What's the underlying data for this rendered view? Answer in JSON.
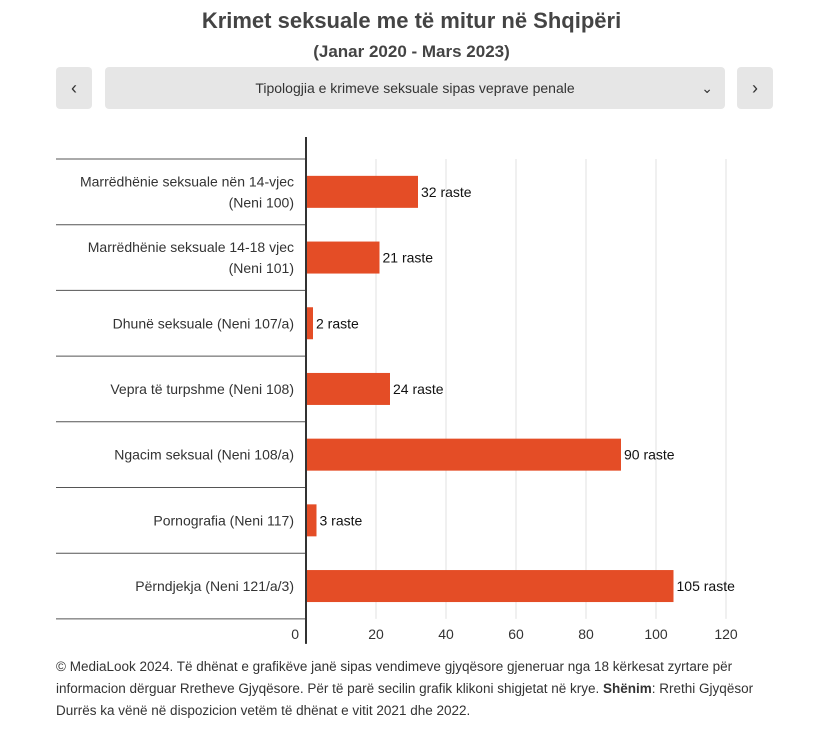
{
  "chart_data": {
    "type": "bar",
    "orientation": "horizontal",
    "title": "Krimet seksuale me të mitur në Shqipëri",
    "subtitle": "(Janar 2020 - Mars 2023)",
    "categories": [
      [
        "Marrëdhënie seksuale nën 14-vjec",
        "(Neni 100)"
      ],
      [
        "Marrëdhënie seksuale 14-18 vjec",
        "(Neni 101)"
      ],
      [
        "Dhunë seksuale (Neni 107/a)"
      ],
      [
        "Vepra të turpshme (Neni 108)"
      ],
      [
        "Ngacim seksual (Neni 108/a)"
      ],
      [
        "Pornografia (Neni 117)"
      ],
      [
        "Përndjekja (Neni 121/a/3)"
      ]
    ],
    "values": [
      32,
      21,
      2,
      24,
      90,
      3,
      105
    ],
    "data_labels": [
      "32 raste",
      "21 raste",
      "2 raste",
      "24 raste",
      "90 raste",
      "3 raste",
      "105 raste"
    ],
    "xlim": [
      0,
      120
    ],
    "xticks": [
      0,
      20,
      40,
      60,
      80,
      100,
      120
    ],
    "grid": true,
    "bar_color": "#e44d26"
  },
  "nav": {
    "prev_icon": "‹",
    "next_icon": "›",
    "dropdown_label": "Tipologjia e krimeve seksuale sipas veprave penale",
    "dropdown_icon": "⌄"
  },
  "footer": {
    "line1": "© MediaLook 2024. Të dhënat e grafikëve janë sipas vendimeve gjyqësore gjeneruar nga 18 kërkesat zyrtare për informacion dërguar Rretheve Gjyqësore. Për të parë secilin grafik klikoni shigjetat në krye.",
    "note_label": "Shënim",
    "note_text": ": Rrethi Gjyqësor Durrës ka vënë në dispozicion vetëm të dhënat e vitit 2021 dhe 2022."
  }
}
